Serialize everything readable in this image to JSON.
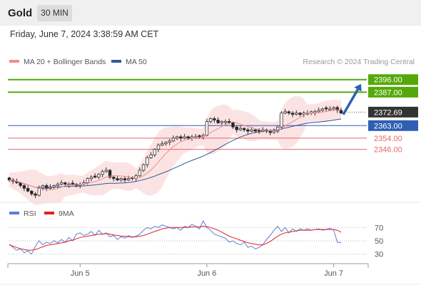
{
  "header": {
    "instrument": "Gold",
    "timeframe": "30 MIN"
  },
  "timestamp": "Friday, June 7, 2024 3:38:59 AM CET",
  "chart_data": [
    {
      "type": "candlestick",
      "legend": [
        {
          "name": "MA 20 + Bollinger Bands",
          "color": "#f08c8c"
        },
        {
          "name": "MA 50",
          "color": "#2f5b9a"
        }
      ],
      "credit": "Research © 2024 Trading Central",
      "x_ticks": [
        "Jun 5",
        "Jun 6",
        "Jun 7"
      ],
      "levels": [
        {
          "label": "2396.00",
          "value": 2396.0,
          "style": "resistance",
          "color": "#55a80a"
        },
        {
          "label": "2387.00",
          "value": 2387.0,
          "style": "resistance",
          "color": "#55a80a"
        },
        {
          "label": "2372.69",
          "value": 2372.69,
          "style": "last",
          "color": "#333333"
        },
        {
          "label": "2363.00",
          "value": 2363.0,
          "style": "pivot",
          "color": "#2f5fb3"
        },
        {
          "label": "2354.00",
          "value": 2354.0,
          "style": "support",
          "color": "#e06a6a"
        },
        {
          "label": "2346.00",
          "value": 2346.0,
          "style": "support",
          "color": "#e06a6a"
        }
      ],
      "y_range": [
        2310,
        2402
      ],
      "closes": [
        2324,
        2323,
        2322,
        2320,
        2318,
        2316,
        2314,
        2313,
        2318,
        2320,
        2318,
        2319,
        2320,
        2321,
        2322,
        2321,
        2321,
        2321,
        2320,
        2321,
        2322,
        2325,
        2326,
        2326,
        2328,
        2330,
        2331,
        2326,
        2325,
        2324,
        2325,
        2324,
        2325,
        2325,
        2327,
        2331,
        2335,
        2340,
        2342,
        2346,
        2349,
        2350,
        2351,
        2352,
        2354,
        2355,
        2354,
        2355,
        2354,
        2355,
        2355,
        2355,
        2356,
        2366,
        2368,
        2367,
        2365,
        2366,
        2366,
        2365,
        2362,
        2360,
        2361,
        2360,
        2359,
        2360,
        2359,
        2359,
        2360,
        2359,
        2358,
        2359,
        2362,
        2372,
        2373,
        2372,
        2371,
        2372,
        2371,
        2372,
        2372,
        2373,
        2373,
        2374,
        2375,
        2375,
        2375,
        2376,
        2374,
        2372
      ]
    },
    {
      "type": "line",
      "legend": [
        {
          "name": "RSI",
          "color": "#5b7fd6"
        },
        {
          "name": "9MA",
          "color": "#e02020"
        }
      ],
      "y_ticks": [
        70,
        50,
        30
      ],
      "y_range": [
        20,
        80
      ],
      "rsi": [
        45,
        40,
        36,
        38,
        32,
        35,
        30,
        42,
        50,
        44,
        48,
        46,
        50,
        47,
        52,
        48,
        55,
        50,
        60,
        62,
        58,
        60,
        64,
        58,
        66,
        60,
        62,
        56,
        58,
        52,
        56,
        54,
        58,
        55,
        57,
        60,
        66,
        70,
        68,
        72,
        70,
        74,
        72,
        70,
        68,
        70,
        66,
        72,
        70,
        75,
        72,
        68,
        80,
        70,
        66,
        60,
        58,
        56,
        54,
        48,
        50,
        46,
        44,
        48,
        40,
        42,
        38,
        40,
        44,
        52,
        58,
        66,
        72,
        64,
        70,
        62,
        68,
        64,
        68,
        66,
        68,
        66,
        67,
        68,
        66,
        67,
        69,
        66,
        48,
        47
      ],
      "ma9": [
        44,
        42,
        40,
        38,
        37,
        36,
        36,
        37,
        39,
        41,
        43,
        44,
        45,
        46,
        47,
        48,
        50,
        51,
        53,
        55,
        56,
        57,
        58,
        59,
        60,
        60,
        61,
        60,
        59,
        58,
        57,
        57,
        56,
        56,
        56,
        57,
        58,
        60,
        62,
        64,
        66,
        68,
        69,
        70,
        70,
        70,
        70,
        70,
        70,
        71,
        71,
        71,
        72,
        71,
        70,
        68,
        66,
        63,
        60,
        57,
        55,
        53,
        51,
        49,
        47,
        46,
        45,
        44,
        44,
        46,
        49,
        53,
        57,
        60,
        62,
        63,
        64,
        65,
        66,
        66,
        66,
        66,
        67,
        67,
        67,
        67,
        67,
        67,
        66,
        63
      ]
    }
  ]
}
